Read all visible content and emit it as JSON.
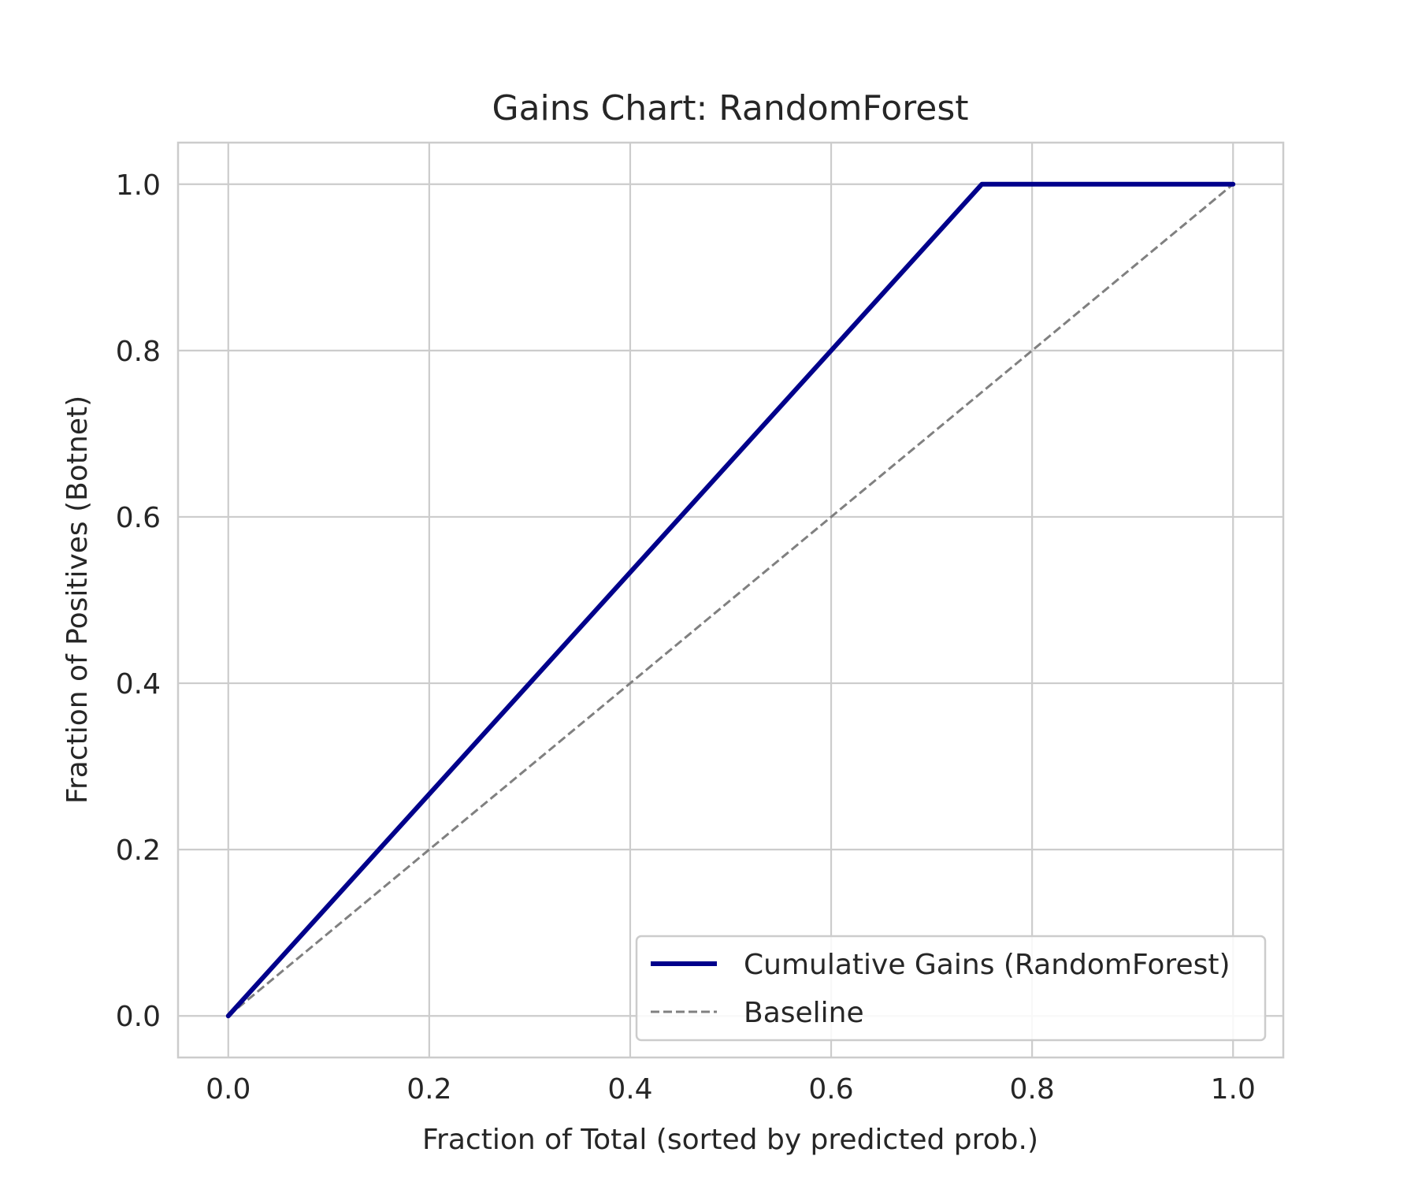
{
  "chart_data": {
    "type": "line",
    "title": "Gains Chart: RandomForest",
    "xlabel": "Fraction of Total (sorted by predicted prob.)",
    "ylabel": "Fraction of Positives (Botnet)",
    "xlim": [
      -0.05,
      1.05
    ],
    "ylim": [
      -0.05,
      1.05
    ],
    "xticks": [
      "0.0",
      "0.2",
      "0.4",
      "0.6",
      "0.8",
      "1.0"
    ],
    "yticks": [
      "0.0",
      "0.2",
      "0.4",
      "0.6",
      "0.8",
      "1.0"
    ],
    "grid": true,
    "legend_position": "lower-right",
    "series": [
      {
        "name": "Cumulative Gains (RandomForest)",
        "x": [
          0.0,
          0.75,
          1.0
        ],
        "y": [
          0.0,
          1.0,
          1.0
        ],
        "color": "#00008b",
        "style": "solid"
      },
      {
        "name": "Baseline",
        "x": [
          0.0,
          1.0
        ],
        "y": [
          0.0,
          1.0
        ],
        "color": "#808080",
        "style": "dashed"
      }
    ]
  }
}
